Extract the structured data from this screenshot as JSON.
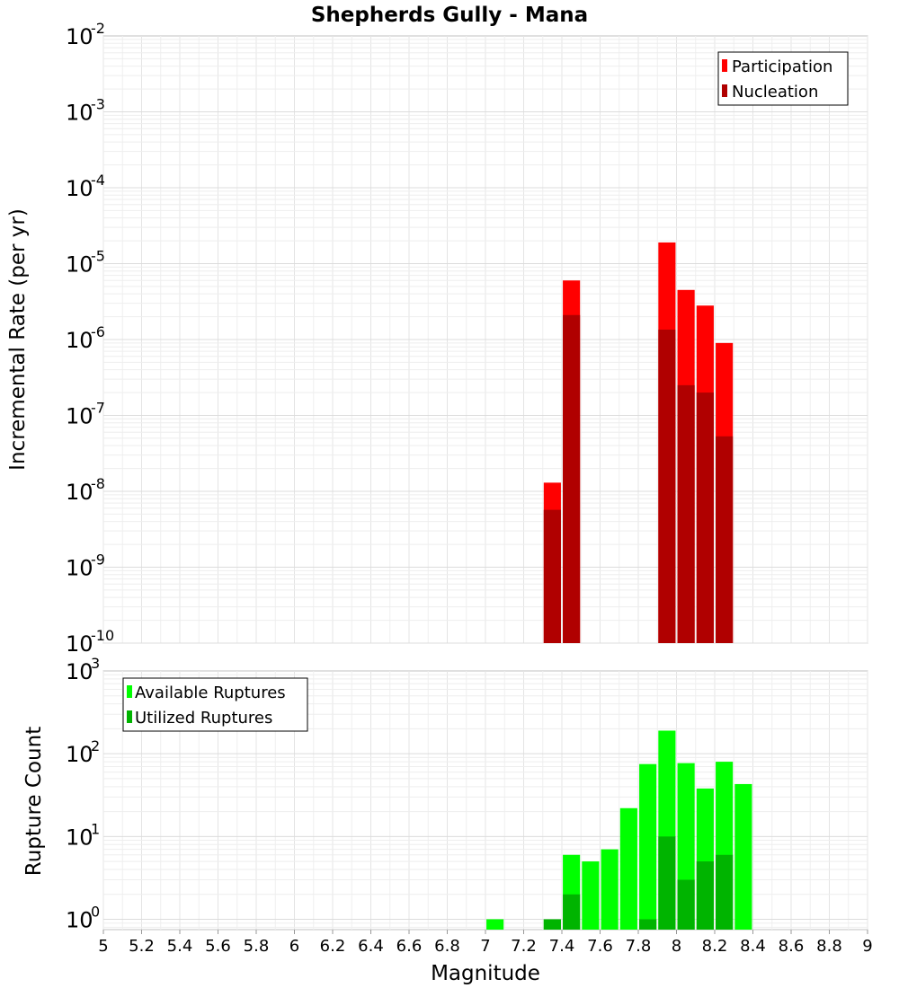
{
  "chart_data": [
    {
      "type": "bar",
      "title": "Shepherds Gully - Mana",
      "xlabel": "",
      "ylabel": "Incremental Rate (per yr)",
      "xlim": [
        5,
        9
      ],
      "ylim": [
        1e-10,
        0.01
      ],
      "yscale": "log",
      "grid": true,
      "bar_width": 0.09,
      "legend": {
        "placement": "top-right",
        "entries": [
          "Participation",
          "Nucleation"
        ]
      },
      "series": [
        {
          "name": "Participation",
          "color": "#ff0000",
          "x": [
            7.35,
            7.45,
            7.95,
            8.05,
            8.15,
            8.25
          ],
          "values": [
            1.3e-08,
            6e-06,
            1.9e-05,
            4.5e-06,
            2.8e-06,
            9e-07
          ]
        },
        {
          "name": "Nucleation",
          "color": "#b00000",
          "x": [
            7.35,
            7.45,
            7.95,
            8.05,
            8.15,
            8.25
          ],
          "values": [
            5.7e-09,
            2.1e-06,
            1.35e-06,
            2.5e-07,
            2e-07,
            5.3e-08
          ]
        }
      ]
    },
    {
      "type": "bar",
      "title": "",
      "xlabel": "Magnitude",
      "ylabel": "Rupture Count",
      "xlim": [
        5,
        9
      ],
      "ylim": [
        0.75,
        1000
      ],
      "yscale": "log",
      "grid": true,
      "bar_width": 0.09,
      "legend": {
        "placement": "top-left",
        "entries": [
          "Available Ruptures",
          "Utilized Ruptures"
        ]
      },
      "x_ticks": [
        "5",
        "5.2",
        "5.4",
        "5.6",
        "5.8",
        "6",
        "6.2",
        "6.4",
        "6.6",
        "6.8",
        "7",
        "7.2",
        "7.4",
        "7.6",
        "7.8",
        "8",
        "8.2",
        "8.4",
        "8.6",
        "8.8",
        "9"
      ],
      "series": [
        {
          "name": "Available Ruptures",
          "color": "#00ff00",
          "x": [
            7.05,
            7.35,
            7.45,
            7.55,
            7.65,
            7.75,
            7.85,
            7.95,
            8.05,
            8.15,
            8.25,
            8.35
          ],
          "values": [
            1,
            1,
            6,
            5,
            7,
            22,
            75,
            190,
            77,
            38,
            80,
            43
          ]
        },
        {
          "name": "Utilized Ruptures",
          "color": "#00b400",
          "x": [
            7.35,
            7.45,
            7.85,
            7.95,
            8.05,
            8.15,
            8.25
          ],
          "values": [
            1,
            2,
            1,
            10,
            3,
            5,
            6
          ]
        }
      ]
    }
  ]
}
